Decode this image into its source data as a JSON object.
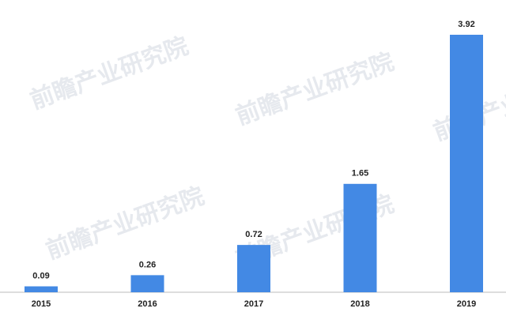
{
  "chart_data": {
    "type": "bar",
    "watermark": "前瞻产业研究院",
    "categories": [
      "2015",
      "2016",
      "2017",
      "2018",
      "2019"
    ],
    "values": [
      0.09,
      0.26,
      0.72,
      1.65,
      3.92
    ],
    "color": "#4389e4"
  }
}
